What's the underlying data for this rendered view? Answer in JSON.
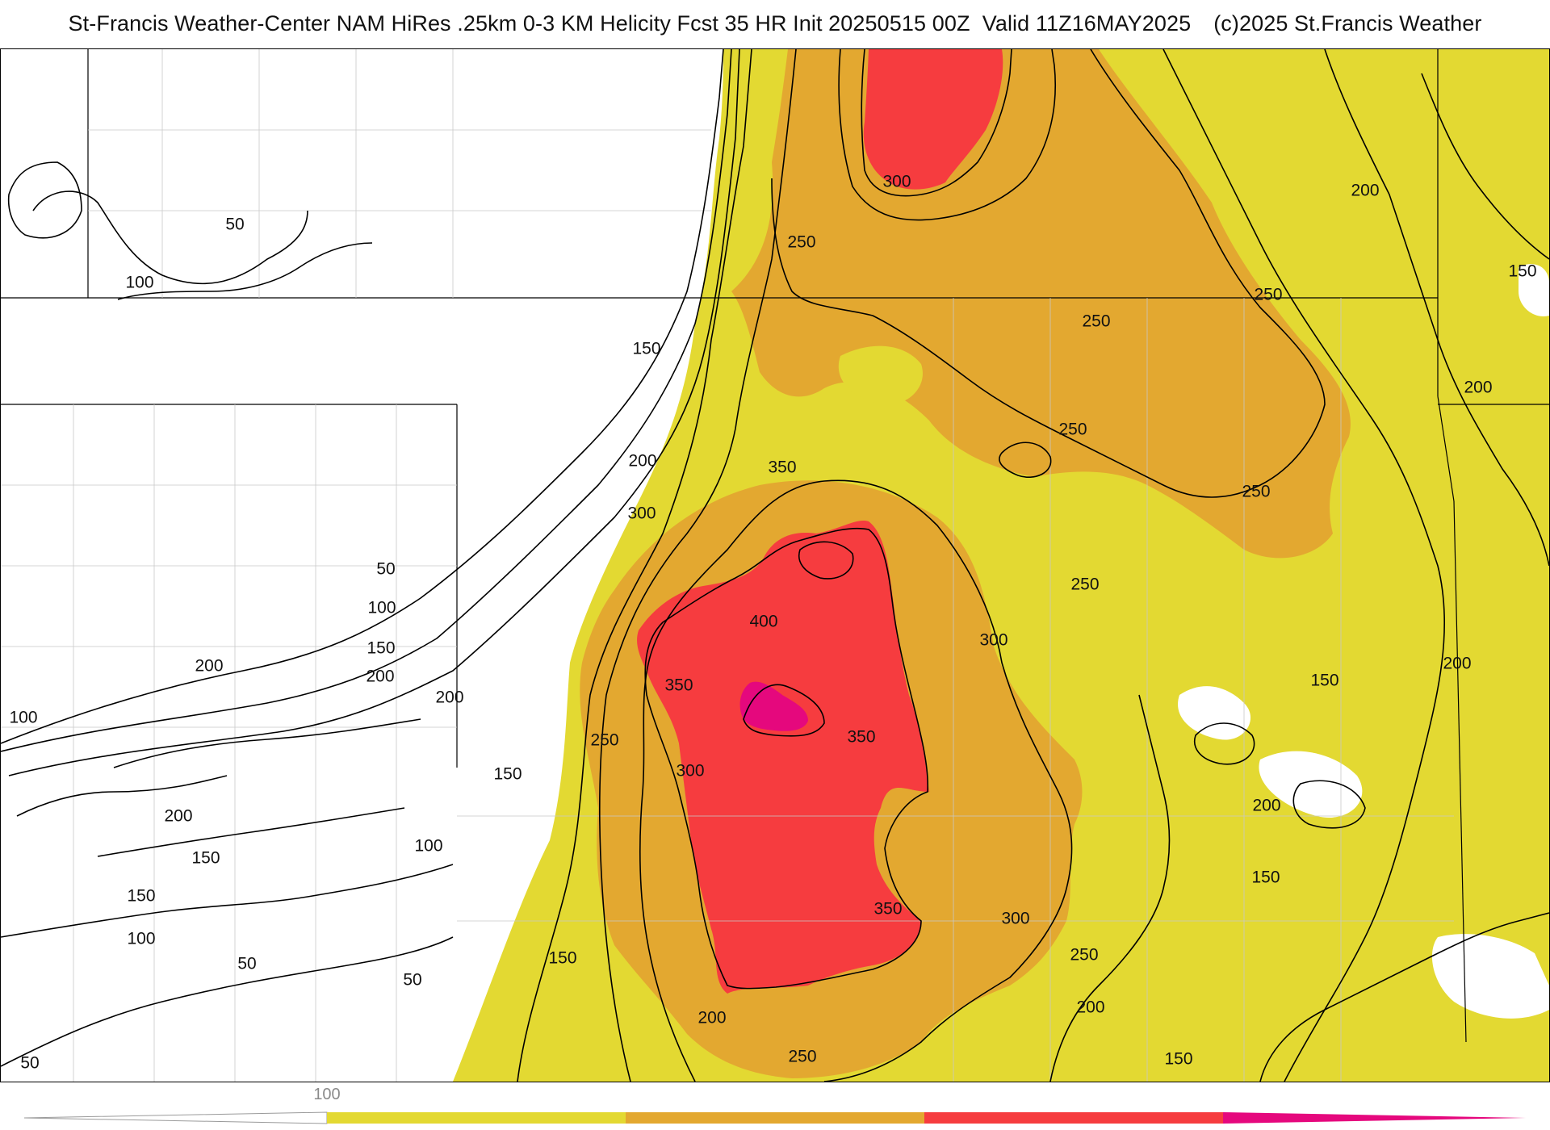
{
  "header": {
    "title": "St-Francis Weather-Center NAM HiRes .25km 0-3 KM Helicity Fcst 35 HR Init 20250515 00Z  Valid 11Z16MAY2025",
    "copyright": "(c)2025 St.Francis Weather"
  },
  "map": {
    "background_color": "#ffffff",
    "fill_colors": {
      "100-200": "#e3d932",
      "200-300": "#e3a830",
      "300-400": "#f63c3f",
      "400+": "#e5087d"
    },
    "contour_color": "#000000",
    "contour_labels": [
      {
        "text": "50"
      },
      {
        "text": "100"
      },
      {
        "text": "300"
      },
      {
        "text": "250"
      },
      {
        "text": "200"
      },
      {
        "text": "150"
      },
      {
        "text": "250"
      },
      {
        "text": "250"
      },
      {
        "text": "150"
      },
      {
        "text": "250"
      },
      {
        "text": "200"
      },
      {
        "text": "200"
      },
      {
        "text": "250"
      },
      {
        "text": "350"
      },
      {
        "text": "300"
      },
      {
        "text": "50"
      },
      {
        "text": "100"
      },
      {
        "text": "150"
      },
      {
        "text": "200"
      },
      {
        "text": "200"
      },
      {
        "text": "200"
      },
      {
        "text": "100"
      },
      {
        "text": "400"
      },
      {
        "text": "350"
      },
      {
        "text": "250"
      },
      {
        "text": "250"
      },
      {
        "text": "300"
      },
      {
        "text": "150"
      },
      {
        "text": "200"
      },
      {
        "text": "150"
      },
      {
        "text": "350"
      },
      {
        "text": "300"
      },
      {
        "text": "150"
      },
      {
        "text": "200"
      },
      {
        "text": "200"
      },
      {
        "text": "100"
      },
      {
        "text": "150"
      },
      {
        "text": "150"
      },
      {
        "text": "100"
      },
      {
        "text": "350"
      },
      {
        "text": "300"
      },
      {
        "text": "250"
      },
      {
        "text": "50"
      },
      {
        "text": "50"
      },
      {
        "text": "150"
      },
      {
        "text": "200"
      },
      {
        "text": "200"
      },
      {
        "text": "250"
      },
      {
        "text": "150"
      },
      {
        "text": "50"
      }
    ]
  },
  "colorbar": {
    "tick_label": "100",
    "segments": [
      "#e3d932",
      "#e3a830",
      "#f63c3f",
      "#e5087d"
    ]
  }
}
